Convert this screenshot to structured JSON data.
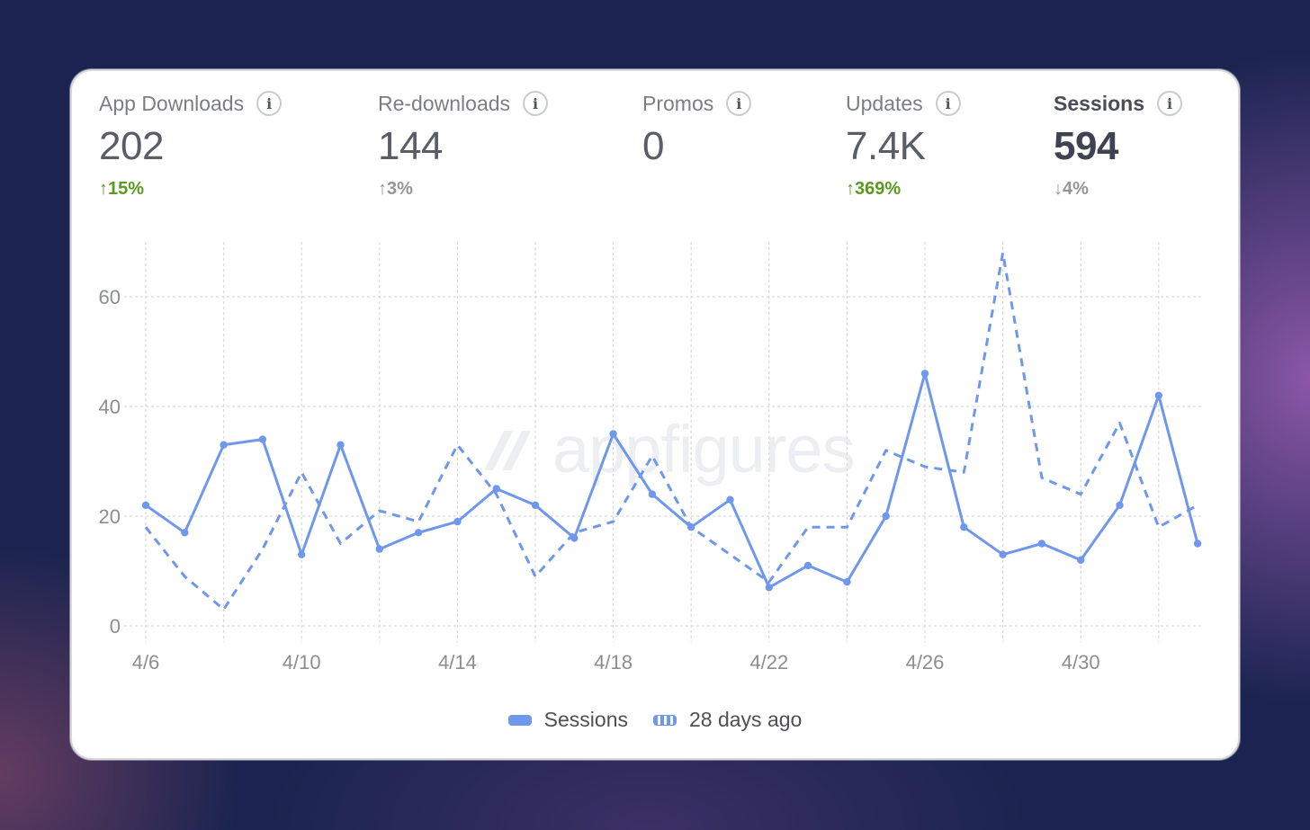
{
  "metrics": [
    {
      "label": "App Downloads",
      "value": "202",
      "change": "15%",
      "arrow": "↑",
      "trend": "up"
    },
    {
      "label": "Re-downloads",
      "value": "144",
      "change": "3%",
      "arrow": "↑",
      "trend": "flat"
    },
    {
      "label": "Promos",
      "value": "0",
      "change": "",
      "arrow": "",
      "trend": "flat"
    },
    {
      "label": "Updates",
      "value": "7.4K",
      "change": "369%",
      "arrow": "↑",
      "trend": "up"
    },
    {
      "label": "Sessions",
      "value": "594",
      "change": "4%",
      "arrow": "↓",
      "trend": "flat"
    }
  ],
  "info_icon": "i",
  "watermark": "appfigures",
  "colors": {
    "series": "#6f97ec",
    "up": "#5b9a1f",
    "flat": "#93969c",
    "grid": "#d9d9d9"
  },
  "chart_data": {
    "type": "line",
    "x": [
      "4/6",
      "4/7",
      "4/8",
      "4/9",
      "4/10",
      "4/11",
      "4/12",
      "4/13",
      "4/14",
      "4/15",
      "4/16",
      "4/17",
      "4/18",
      "4/19",
      "4/20",
      "4/21",
      "4/22",
      "4/23",
      "4/24",
      "4/25",
      "4/26",
      "4/27",
      "4/28",
      "4/29",
      "4/30",
      "5/1",
      "5/2",
      "5/3"
    ],
    "tick_labels": [
      "4/6",
      "4/10",
      "4/14",
      "4/18",
      "4/22",
      "4/26",
      "4/30"
    ],
    "yticks": [
      0,
      20,
      40,
      60
    ],
    "ylim": [
      0,
      70
    ],
    "series": [
      {
        "name": "Sessions",
        "style": "solid",
        "values": [
          22,
          17,
          33,
          34,
          13,
          33,
          14,
          17,
          19,
          25,
          22,
          16,
          35,
          24,
          18,
          23,
          7,
          11,
          8,
          20,
          46,
          18,
          13,
          15,
          12,
          22,
          42,
          15
        ]
      },
      {
        "name": "28 days ago",
        "style": "dashed",
        "values": [
          18,
          9,
          3,
          14,
          28,
          15,
          21,
          19,
          33,
          24,
          9,
          17,
          19,
          31,
          18,
          13,
          8,
          18,
          18,
          32,
          29,
          28,
          68,
          27,
          24,
          37,
          18,
          22
        ]
      }
    ],
    "legend": [
      "Sessions",
      "28 days ago"
    ],
    "grid": true
  }
}
